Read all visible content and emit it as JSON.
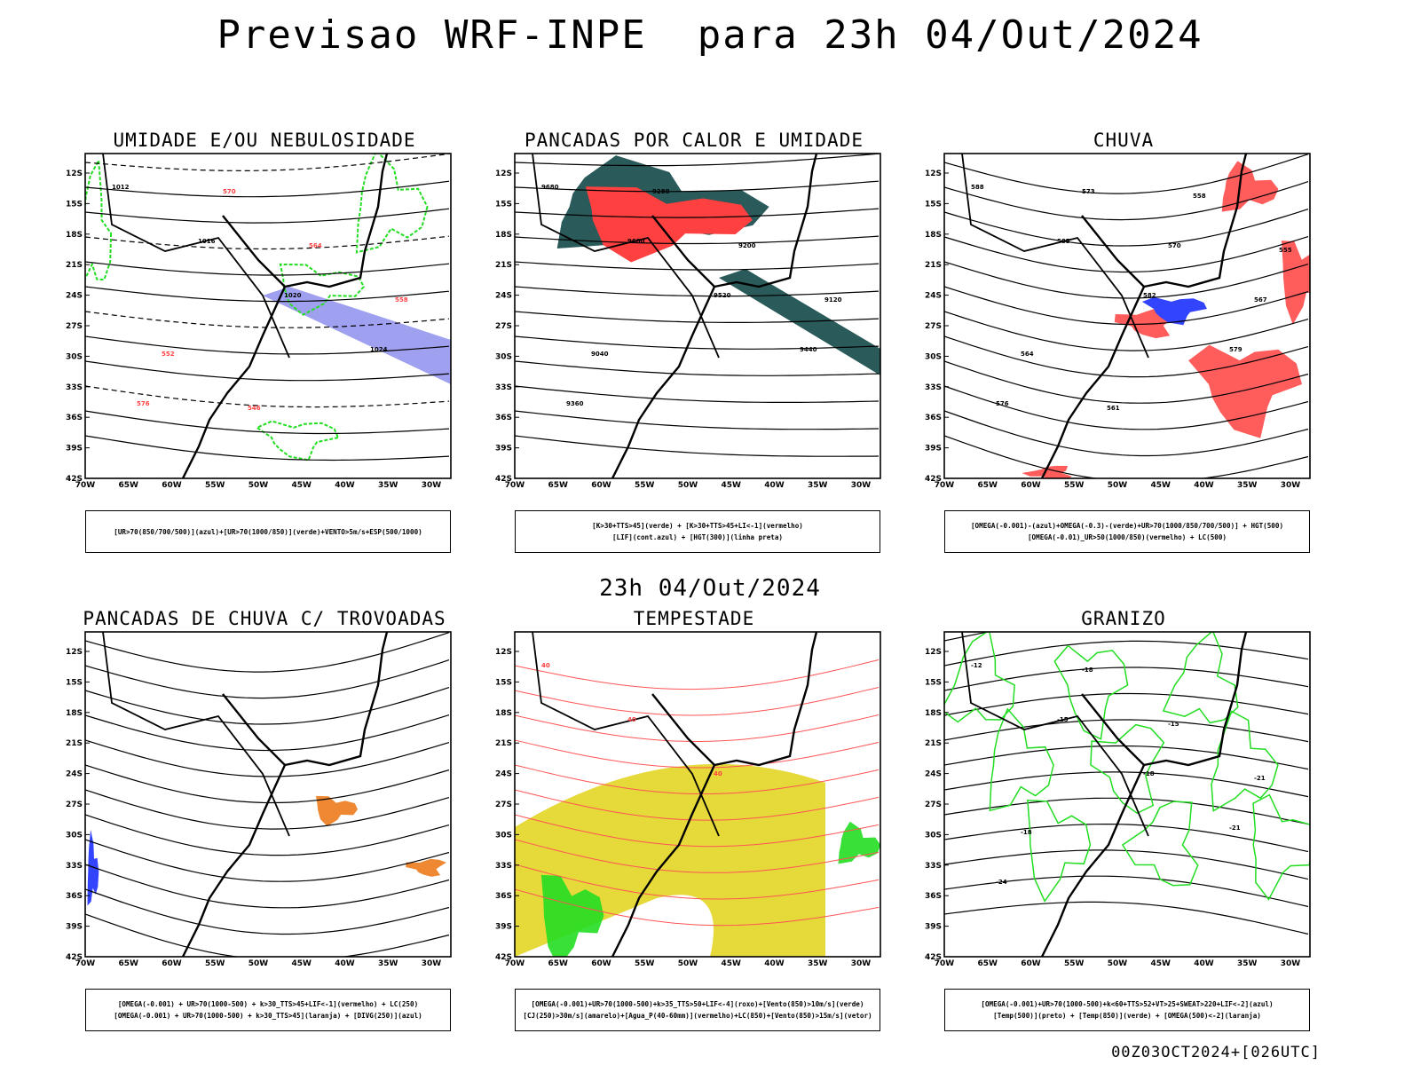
{
  "header": {
    "title": "Previsao WRF-INPE  para 23h 04/Out/2024"
  },
  "middle": {
    "title": "23h 04/Out/2024"
  },
  "footer": {
    "run": "00Z03OCT2024+[026UTC]"
  },
  "axes": {
    "lat_labels": [
      "12S",
      "15S",
      "18S",
      "21S",
      "24S",
      "27S",
      "30S",
      "33S",
      "36S",
      "39S",
      "42S"
    ],
    "lon_labels": [
      "70W",
      "65W",
      "60W",
      "55W",
      "50W",
      "45W",
      "40W",
      "35W",
      "30W"
    ]
  },
  "colors": {
    "red": "#ff4040",
    "green": "#22dd22",
    "blue": "#3344ff",
    "lavender": "#a0a0f0",
    "teal": "#2a5a5a",
    "yellow": "#e6d93a",
    "orange": "#ee8833",
    "lightred": "#ff5555"
  },
  "panels": [
    {
      "title": "UMIDADE E/OU NEBULOSIDADE",
      "legend": [
        "[UR>70(850/700/500)](azul)+[UR>70(1000/850)](verde)+VENTO>5m/s+ESP(500/1000)"
      ],
      "contour_labels": [
        "1012",
        "1016",
        "1020",
        "1024",
        "576",
        "570",
        "564",
        "558",
        "552",
        "546"
      ]
    },
    {
      "title": "PANCADAS POR CALOR E UMIDADE",
      "legend": [
        "[K>30+TTS>45](verde) + [K>30+TTS>45+LI<-1](vermelho)",
        "[LIF](cont.azul) + [HGT(300)](linha preta)"
      ],
      "contour_labels": [
        "9680",
        "9600",
        "9520",
        "9440",
        "9360",
        "9280",
        "9200",
        "9120",
        "9040"
      ]
    },
    {
      "title": "CHUVA",
      "legend": [
        "[OMEGA(-0.001)-(azul)+OMEGA(-0.3)-(verde)+UR>70(1000/850/700/500)] + HGT(500)",
        "[OMEGA(-0.01)_UR>50(1000/850)(vermelho) + LC(500)"
      ],
      "contour_labels": [
        "588",
        "585",
        "582",
        "579",
        "576",
        "573",
        "570",
        "567",
        "564",
        "561",
        "558",
        "555"
      ]
    },
    {
      "title": "PANCADAS DE CHUVA C/ TROVOADAS",
      "legend": [
        "[OMEGA(-0.001) + UR>70(1000-500) + k>30_TTS>45+LIF<-1](vermelho) + LC(250)",
        "[OMEGA(-0.001) + UR>70(1000-500) + k>30_TTS>45](laranja) + [DIVG(250)](azul)"
      ],
      "contour_labels": []
    },
    {
      "title": "TEMPESTADE",
      "legend": [
        "[OMEGA(-0.001)+UR>70(1000-500)+k>35_TTS>50+LIF<-4](roxo)+[Vento(850)>10m/s](verde)",
        "[CJ(250)>30m/s](amarelo)+[Agua_P(40-60mm)](vermelho)+LC(850)+[Vento(850)>15m/s](vetor)"
      ],
      "contour_labels": [
        "40",
        "40",
        "40"
      ]
    },
    {
      "title": "GRANIZO",
      "legend": [
        "[OMEGA(-0.001)+UR>70(1000-500)+k<60+TTS>52+VT>25+SWEAT>220+LIF<-2](azul)",
        "[Temp(500)](preto) + [Temp(850)](verde) + [OMEGA(500)<-2](laranja)"
      ],
      "contour_labels": [
        "-12",
        "-15",
        "-18",
        "-21",
        "-24",
        "-18",
        "-15",
        "-21",
        "-18"
      ]
    }
  ]
}
